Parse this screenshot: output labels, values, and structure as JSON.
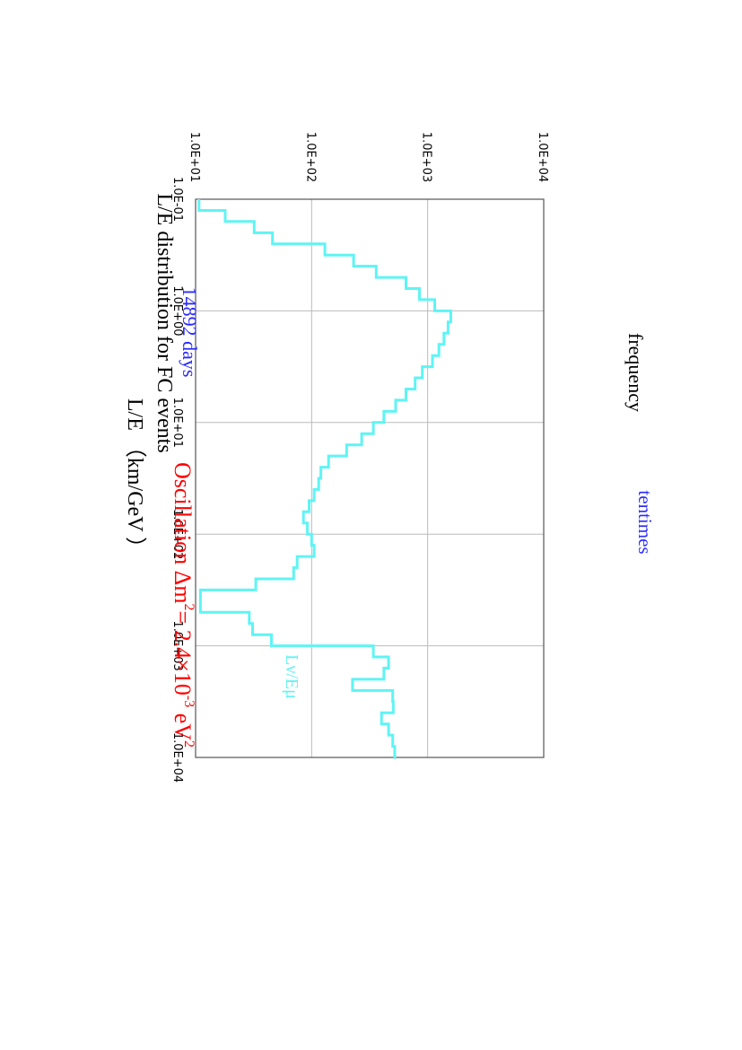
{
  "chart_data": {
    "type": "line",
    "title": "L/E distribution for FC events",
    "subtitle": "14892 days",
    "note": "tentimes",
    "annotation": {
      "prefix": "Oscillation Δm",
      "exp1": "2",
      "mid": "= 2.4×10",
      "exp2": "-3",
      "unit": " eV",
      "exp3": "2"
    },
    "xlabel": "L/E （km/GeV ）",
    "ylabel": "frequency",
    "x_scale": "log",
    "y_scale": "log",
    "xlim": [
      0.1,
      10000
    ],
    "ylim": [
      10,
      10000
    ],
    "x_ticks": [
      "1.0E-01",
      "1.0E+00",
      "1.0E+01",
      "1.0E+02",
      "1.0E+03",
      "1.0E+04"
    ],
    "y_ticks": [
      "1.0E+01",
      "1.0E+02",
      "1.0E+03",
      "1.0E+04"
    ],
    "grid": true,
    "series": [
      {
        "name": "Lν/Eμ",
        "color": "#5ff4f4",
        "step": true,
        "x_edges": [
          0.1,
          0.126,
          0.158,
          0.2,
          0.251,
          0.316,
          0.398,
          0.501,
          0.631,
          0.794,
          1.0,
          1.259,
          1.585,
          1.995,
          2.512,
          3.162,
          3.981,
          5.012,
          6.31,
          7.943,
          10.0,
          12.59,
          15.85,
          19.95,
          25.12,
          31.62,
          39.81,
          50.12,
          63.1,
          79.43,
          100.0,
          125.9,
          158.5,
          199.5,
          251.2,
          316.2,
          398.1,
          501.2,
          631.0,
          794.3,
          1000,
          1259,
          1585,
          1995,
          2512,
          3162,
          3981,
          5012,
          6310,
          7943,
          10000
        ],
        "values": [
          10.7,
          18,
          32,
          46,
          130,
          230,
          360,
          650,
          850,
          1150,
          1580,
          1500,
          1380,
          1250,
          1100,
          900,
          780,
          650,
          530,
          420,
          340,
          270,
          200,
          140,
          120,
          115,
          105,
          95,
          85,
          92,
          100,
          105,
          75,
          70,
          33,
          11,
          11,
          29,
          31,
          45,
          340,
          460,
          420,
          225,
          500,
          505,
          400,
          460,
          500,
          520,
          510
        ],
        "tail_value": 480,
        "tail_end": 8200
      }
    ]
  }
}
